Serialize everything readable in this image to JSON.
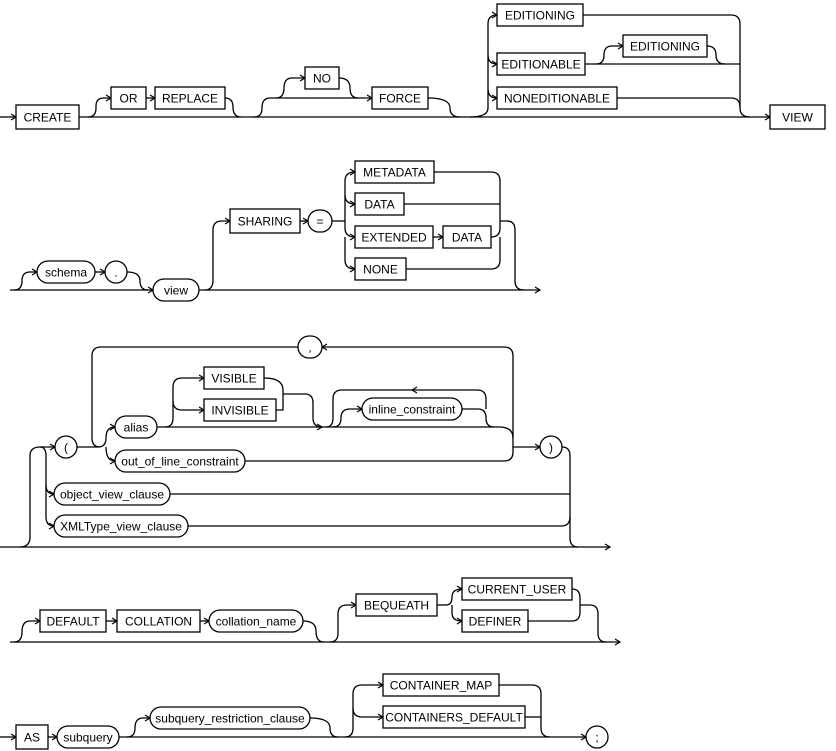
{
  "diagram": {
    "type": "railroad syntax diagram",
    "rows": [
      {
        "nodes": [
          {
            "label": "CREATE",
            "kind": "keyword"
          },
          {
            "label": "OR",
            "kind": "keyword"
          },
          {
            "label": "REPLACE",
            "kind": "keyword"
          },
          {
            "label": "NO",
            "kind": "keyword"
          },
          {
            "label": "FORCE",
            "kind": "keyword"
          },
          {
            "label": "EDITIONING",
            "kind": "keyword"
          },
          {
            "label": "EDITIONABLE",
            "kind": "keyword"
          },
          {
            "label": "EDITIONING",
            "kind": "keyword"
          },
          {
            "label": "NONEDITIONABLE",
            "kind": "keyword"
          },
          {
            "label": "VIEW",
            "kind": "keyword"
          }
        ]
      },
      {
        "nodes": [
          {
            "label": "schema",
            "kind": "nonterminal"
          },
          {
            "label": ".",
            "kind": "symbol"
          },
          {
            "label": "view",
            "kind": "nonterminal"
          },
          {
            "label": "SHARING",
            "kind": "keyword"
          },
          {
            "label": "=",
            "kind": "symbol"
          },
          {
            "label": "METADATA",
            "kind": "keyword"
          },
          {
            "label": "DATA",
            "kind": "keyword"
          },
          {
            "label": "EXTENDED",
            "kind": "keyword"
          },
          {
            "label": "DATA",
            "kind": "keyword"
          },
          {
            "label": "NONE",
            "kind": "keyword"
          }
        ]
      },
      {
        "nodes": [
          {
            "label": ",",
            "kind": "symbol"
          },
          {
            "label": "(",
            "kind": "symbol"
          },
          {
            "label": "alias",
            "kind": "nonterminal"
          },
          {
            "label": "VISIBLE",
            "kind": "keyword"
          },
          {
            "label": "INVISIBLE",
            "kind": "keyword"
          },
          {
            "label": "inline_constraint",
            "kind": "nonterminal"
          },
          {
            "label": "out_of_line_constraint",
            "kind": "nonterminal"
          },
          {
            "label": ")",
            "kind": "symbol"
          },
          {
            "label": "object_view_clause",
            "kind": "nonterminal"
          },
          {
            "label": "XMLType_view_clause",
            "kind": "nonterminal"
          }
        ]
      },
      {
        "nodes": [
          {
            "label": "DEFAULT",
            "kind": "keyword"
          },
          {
            "label": "COLLATION",
            "kind": "keyword"
          },
          {
            "label": "collation_name",
            "kind": "nonterminal"
          },
          {
            "label": "BEQUEATH",
            "kind": "keyword"
          },
          {
            "label": "CURRENT_USER",
            "kind": "keyword"
          },
          {
            "label": "DEFINER",
            "kind": "keyword"
          }
        ]
      },
      {
        "nodes": [
          {
            "label": "AS",
            "kind": "keyword"
          },
          {
            "label": "subquery",
            "kind": "nonterminal"
          },
          {
            "label": "subquery_restriction_clause",
            "kind": "nonterminal"
          },
          {
            "label": "CONTAINER_MAP",
            "kind": "keyword"
          },
          {
            "label": "CONTAINERS_DEFAULT",
            "kind": "keyword"
          },
          {
            "label": ";",
            "kind": "symbol"
          }
        ]
      }
    ]
  }
}
